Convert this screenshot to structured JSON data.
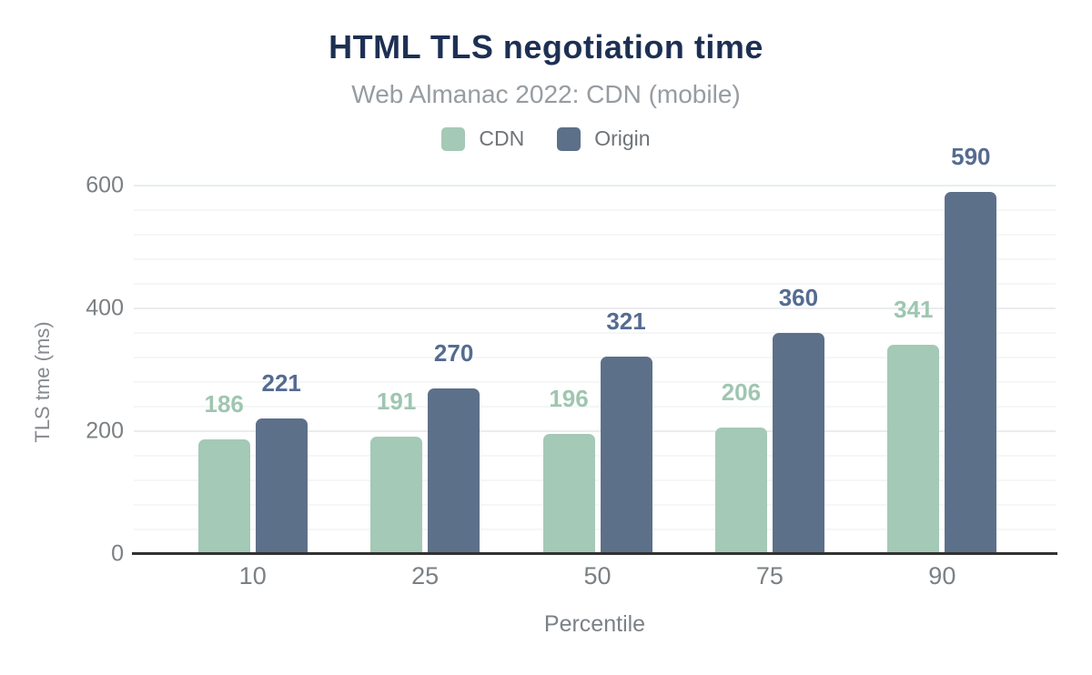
{
  "colors": {
    "title_text": "#1d3053",
    "subtitle_text": "#979ca1",
    "axis_text": "#7b8084",
    "cdn_green": "#a4c9b6",
    "origin_slate": "#5d7089"
  },
  "chart_data": {
    "type": "bar",
    "title": "HTML TLS negotiation time",
    "subtitle": "Web Almanac 2022: CDN (mobile)",
    "xlabel": "Percentile",
    "ylabel": "TLS tme (ms)",
    "categories": [
      "10",
      "25",
      "50",
      "75",
      "90"
    ],
    "series": [
      {
        "name": "CDN",
        "color": "#a4c9b6",
        "label_color": "#9fc6b0",
        "values": [
          186,
          191,
          196,
          206,
          341
        ]
      },
      {
        "name": "Origin",
        "color": "#5d7089",
        "label_color": "#556b91",
        "values": [
          221,
          270,
          321,
          360,
          590
        ]
      }
    ],
    "ylim": [
      0,
      600
    ],
    "yticks": [
      0,
      200,
      400,
      600
    ],
    "grid_step": 40,
    "grid": true,
    "value_labels": true,
    "legend_position": "top"
  }
}
